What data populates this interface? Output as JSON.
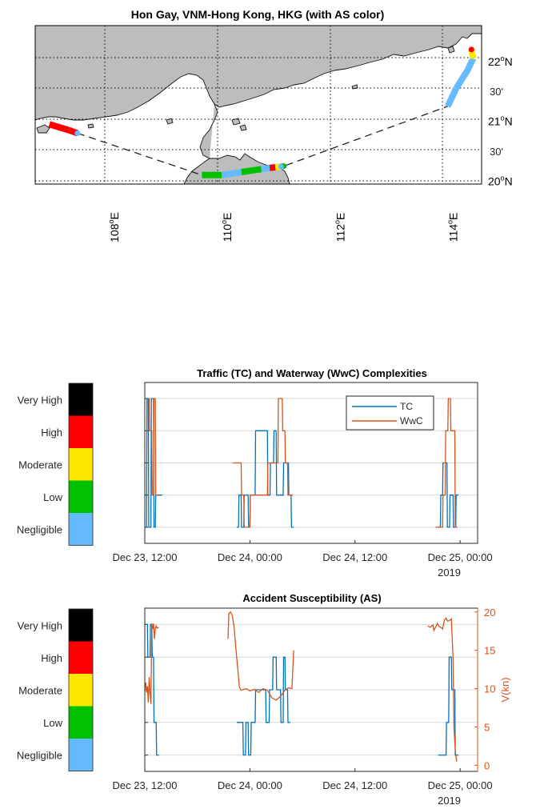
{
  "chart_data": [
    {
      "type": "map",
      "title": "Hon Gay, VNM-Hong Kong, HKG (with AS color)",
      "lon_ticks": [
        "108",
        "110",
        "112",
        "114"
      ],
      "lon_suffix": "E",
      "lat_ticks": [
        {
          "lat": 22.0,
          "label": "22",
          "unit": "N"
        },
        {
          "lat": 21.5,
          "label": "30'"
        },
        {
          "lat": 21.0,
          "label": "21",
          "unit": "N"
        },
        {
          "lat": 20.5,
          "label": "30'"
        },
        {
          "lat": 20.0,
          "label": "20",
          "unit": "N"
        }
      ],
      "degree_mark": "o",
      "xlim": [
        106.6,
        114.5
      ],
      "ylim": [
        19.95,
        22.6
      ],
      "grid": true,
      "route_segments": [
        {
          "lon": [
            106.85,
            107.2,
            107.35
          ],
          "lat": [
            20.95,
            20.85,
            20.8
          ],
          "levels": [
            "High",
            "High",
            "Negligible"
          ]
        },
        {
          "lon": [
            109.55,
            109.9,
            110.25,
            110.6,
            111.0
          ],
          "lat": [
            20.1,
            20.1,
            20.15,
            20.2,
            20.25
          ],
          "levels": [
            "Low",
            "Negligible",
            "Low",
            "Negligible",
            "Low"
          ]
        },
        {
          "lon": [
            110.75,
            110.85,
            110.95
          ],
          "lat": [
            20.22,
            20.23,
            20.24
          ],
          "levels": [
            "High",
            "Moderate",
            "Negligible"
          ]
        },
        {
          "lon": [
            113.9,
            114.05,
            114.25
          ],
          "lat": [
            21.25,
            21.55,
            21.85
          ],
          "levels": [
            "Negligible",
            "Negligible",
            "Negligible"
          ]
        },
        {
          "lon": [
            114.25,
            114.35,
            114.32
          ],
          "lat": [
            21.85,
            22.05,
            22.2
          ],
          "levels": [
            "Negligible",
            "Moderate",
            "High"
          ]
        }
      ],
      "dashed_path": {
        "lon": [
          107.35,
          109.55,
          111.0,
          113.9
        ],
        "lat": [
          20.8,
          20.1,
          20.25,
          21.25
        ]
      }
    },
    {
      "type": "line",
      "title": "Traffic (TC) and Waterway (WwC) Complexities",
      "x_tick_labels": [
        "Dec 23, 12:00",
        "Dec 24, 00:00",
        "Dec 24, 12:00",
        "Dec 25, 00:00"
      ],
      "x_sub_label": "2019",
      "x_ticks_hours": [
        12,
        24,
        36,
        48
      ],
      "xlim_hours": [
        12,
        50
      ],
      "ylim": [
        0.5,
        5.5
      ],
      "y_levels": [
        "Negligible",
        "Low",
        "Moderate",
        "High",
        "Very High"
      ],
      "legend": [
        "TC",
        "WwC"
      ],
      "legend_location": "top-right",
      "series": [
        {
          "name": "TC",
          "color": "#0072BD",
          "x": [
            12.0,
            12.2,
            12.25,
            12.4,
            12.45,
            12.7,
            12.75,
            13.0,
            13.05,
            13.2,
            13.25,
            14.0,
            22.5,
            22.7,
            22.75,
            23.0,
            23.05,
            23.3,
            23.35,
            23.8,
            23.85,
            24.0,
            24.05,
            24.6,
            24.65,
            26.0,
            26.05,
            26.3,
            26.35,
            26.7,
            26.75,
            27.0,
            27.05,
            27.8,
            27.85,
            28.4,
            28.45,
            28.7,
            28.75,
            29.0,
            45.5,
            45.75,
            45.8,
            46.0,
            46.05,
            46.5,
            46.55,
            46.8,
            46.85,
            47.2,
            47.25,
            47.5,
            47.55,
            47.8
          ],
          "y": [
            1,
            1,
            5,
            5,
            1,
            1,
            5,
            5,
            1,
            1,
            2,
            2,
            1,
            1,
            2,
            2,
            1,
            1,
            2,
            2,
            1,
            1,
            2,
            2,
            4,
            4,
            2,
            2,
            3,
            3,
            4,
            4,
            2,
            2,
            3,
            3,
            2,
            2,
            1,
            1,
            1,
            1,
            2,
            2,
            3,
            3,
            1,
            1,
            2,
            2,
            1,
            1,
            2,
            2
          ]
        },
        {
          "name": "WwC",
          "color": "#D95319",
          "x": [
            12.4,
            12.5,
            12.55,
            12.8,
            12.85,
            13.0,
            13.05,
            13.2,
            13.25,
            13.5,
            22.0,
            23.0,
            23.05,
            23.3,
            23.35,
            24.0,
            24.05,
            26.0,
            26.05,
            27.2,
            27.25,
            27.7,
            27.75,
            28.0,
            28.05,
            28.3,
            28.35,
            28.9,
            45.2,
            46.0,
            46.05,
            46.3,
            46.35,
            46.6,
            46.65,
            46.9,
            46.95,
            47.4,
            47.45,
            47.7
          ],
          "y": [
            5,
            5,
            4,
            4,
            2,
            2,
            5,
            5,
            2,
            2,
            3,
            3,
            2,
            2,
            1,
            1,
            2,
            2,
            3,
            3,
            5,
            5,
            4,
            4,
            3,
            3,
            2,
            2,
            1,
            1,
            2,
            2,
            4,
            4,
            5,
            5,
            4,
            4,
            1,
            1
          ]
        }
      ]
    },
    {
      "type": "line",
      "title": "Accident Susceptibility (AS)",
      "x_tick_labels": [
        "Dec 23, 12:00",
        "Dec 24, 00:00",
        "Dec 24, 12:00",
        "Dec 25, 00:00"
      ],
      "x_sub_label": "2019",
      "x_ticks_hours": [
        12,
        24,
        36,
        48
      ],
      "xlim_hours": [
        12,
        50
      ],
      "ylim": [
        0.5,
        5.5
      ],
      "y_levels": [
        "Negligible",
        "Low",
        "Moderate",
        "High",
        "Very High"
      ],
      "y2label": "V(kn)",
      "y2_ticks": [
        0,
        5,
        10,
        15,
        20
      ],
      "y2lim": [
        -0.8,
        20.5
      ],
      "series": [
        {
          "name": "AS",
          "color": "#0072BD",
          "x": [
            12.0,
            12.3,
            12.35,
            12.6,
            12.65,
            12.8,
            12.85,
            13.0,
            13.05,
            13.3,
            13.35,
            13.6,
            22.5,
            23.2,
            23.25,
            23.5,
            23.55,
            23.8,
            23.85,
            24.1,
            24.15,
            24.6,
            24.65,
            25.8,
            25.85,
            26.2,
            26.25,
            26.6,
            26.65,
            27.0,
            27.05,
            27.5,
            27.55,
            27.8,
            27.85,
            28.0,
            28.05,
            28.3,
            28.35,
            28.6,
            45.5,
            46.4,
            46.45,
            46.7,
            46.75,
            47.0,
            47.05,
            47.4,
            47.45,
            47.8
          ],
          "y": [
            5,
            5,
            4,
            4,
            5,
            5,
            4,
            4,
            2,
            2,
            1,
            1,
            2,
            2,
            1,
            1,
            2,
            2,
            1,
            1,
            2,
            2,
            3,
            3,
            2,
            2,
            3,
            3,
            4,
            4,
            3,
            3,
            2,
            2,
            4,
            4,
            3,
            3,
            2,
            2,
            1,
            1,
            2,
            2,
            4,
            4,
            3,
            3,
            1,
            1
          ]
        },
        {
          "name": "V(kn)",
          "color": "#D95319",
          "axis": "right",
          "x": [
            12.0,
            12.1,
            12.2,
            12.3,
            12.4,
            12.5,
            12.6,
            12.7,
            12.8,
            12.9,
            13.0,
            13.1,
            13.2,
            13.3,
            13.4,
            13.6,
            21.5,
            21.6,
            21.8,
            22.0,
            22.2,
            22.4,
            22.6,
            22.8,
            23.0,
            23.3,
            23.6,
            24.0,
            24.5,
            25.0,
            25.5,
            26.0,
            26.5,
            27.0,
            27.5,
            28.0,
            28.4,
            28.8,
            29.0,
            44.3,
            44.6,
            44.9,
            45.0,
            45.2,
            45.4,
            45.6,
            45.8,
            46.0,
            46.2,
            46.4,
            46.6,
            46.8,
            47.0,
            47.2,
            47.3,
            47.45,
            47.6
          ],
          "y": [
            10.0,
            10.8,
            9.5,
            10.3,
            8.2,
            11.5,
            9.4,
            8.0,
            18.5,
            17.8,
            18.5,
            16.5,
            17.8,
            18.2,
            17.9,
            18.0,
            16.5,
            19.8,
            20.0,
            19.5,
            18.0,
            15.2,
            12.8,
            10.2,
            9.8,
            9.9,
            10.0,
            9.7,
            9.9,
            9.5,
            10.0,
            9.8,
            8.8,
            8.5,
            9.0,
            9.8,
            10.1,
            10.0,
            15.0,
            18.2,
            18.0,
            18.3,
            17.6,
            18.0,
            18.5,
            18.1,
            18.0,
            17.8,
            18.9,
            19.2,
            18.8,
            18.9,
            19.1,
            14.0,
            5.0,
            2.0,
            0.5
          ]
        }
      ]
    }
  ],
  "colorbar": {
    "levels": [
      "Very High",
      "High",
      "Moderate",
      "Low",
      "Negligible"
    ],
    "colors": [
      "#000000",
      "#FF0000",
      "#FFE800",
      "#00C000",
      "#66BBFF"
    ]
  },
  "colors": {
    "land": "#BDBDBD",
    "sea": "#FFFFFF",
    "tc": "#0072BD",
    "wwc": "#D95319",
    "grid": "#D9D9D9"
  }
}
